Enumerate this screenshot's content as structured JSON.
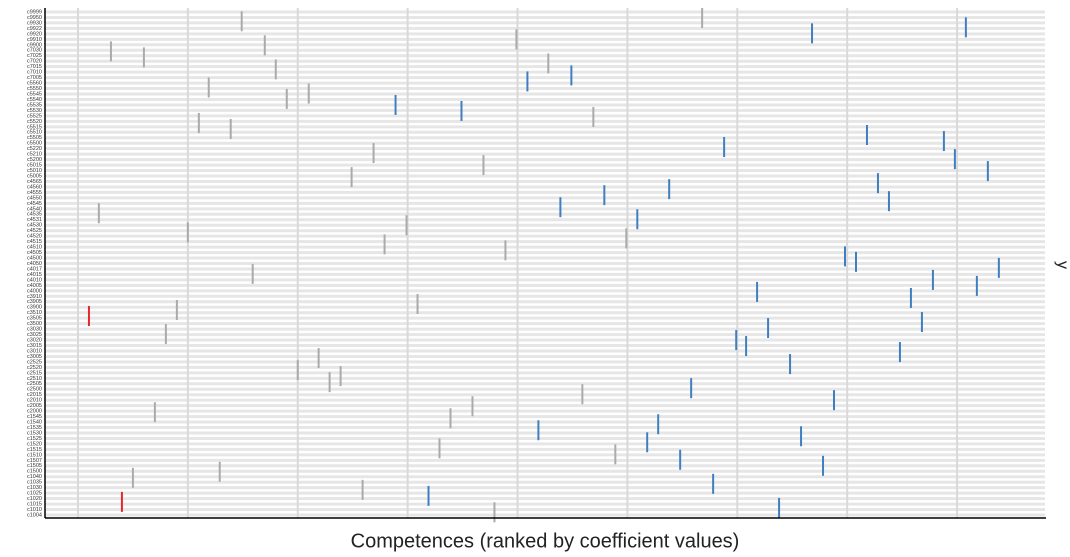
{
  "chart_data": {
    "type": "scatter",
    "xlabel": "Competences (ranked by coefficient values)",
    "ylabel": "y",
    "categories": [
      "c9999",
      "c9950",
      "c9930",
      "c9922",
      "c9920",
      "c9910",
      "c9900",
      "c7030",
      "c7025",
      "c7020",
      "c7015",
      "c7010",
      "c7005",
      "c5560",
      "c5550",
      "c5545",
      "c5540",
      "c5535",
      "c5530",
      "c5525",
      "c5520",
      "c5515",
      "c5510",
      "c5505",
      "c5500",
      "c5220",
      "c5210",
      "c5200",
      "c5015",
      "c5010",
      "c5005",
      "c4565",
      "c4560",
      "c4555",
      "c4550",
      "c4545",
      "c4540",
      "c4535",
      "c4531",
      "c4530",
      "c4525",
      "c4520",
      "c4515",
      "c4510",
      "c4505",
      "c4500",
      "c4050",
      "c4017",
      "c4015",
      "c4010",
      "c4005",
      "c4000",
      "c3910",
      "c3905",
      "c3900",
      "c3510",
      "c3505",
      "c3500",
      "c3030",
      "c3025",
      "c3020",
      "c3015",
      "c3010",
      "c3005",
      "c2525",
      "c2520",
      "c2515",
      "c2510",
      "c2505",
      "c2500",
      "c2015",
      "c2010",
      "c2005",
      "c2000",
      "c1545",
      "c1540",
      "c1535",
      "c1530",
      "c1525",
      "c1520",
      "c1515",
      "c1510",
      "c1507",
      "c1505",
      "c1500",
      "c1040",
      "c1035",
      "c1030",
      "c1025",
      "c1020",
      "c1015",
      "c1010",
      "c1004"
    ],
    "xlim": [
      -3,
      88
    ],
    "xticks": [
      0,
      10,
      20,
      30,
      40,
      50,
      60,
      70,
      80
    ],
    "ylim": [
      0,
      92
    ],
    "grid": true,
    "series": [
      {
        "color": "#aaaaaa",
        "x": [
          14.9,
          56.8,
          39.9,
          17.0,
          3.0,
          6.0,
          42.8,
          18.0,
          11.9,
          19.0,
          21.0,
          46.9,
          11.0,
          13.9,
          26.9,
          36.9,
          24.9,
          1.9,
          29.9,
          10.0,
          27.9,
          38.9,
          49.9,
          15.9,
          30.9,
          9.0,
          8.0,
          21.9,
          20.0,
          23.9,
          22.9,
          45.9,
          7.0,
          35.9,
          33.9,
          32.9,
          48.9,
          12.9,
          5.0,
          25.9,
          37.9
        ],
        "values": [
          90.3,
          90.9,
          87.0,
          85.9,
          84.8,
          83.7,
          82.6,
          81.5,
          78.2,
          76.1,
          77.1,
          72.8,
          71.7,
          70.6,
          66.2,
          64.0,
          61.8,
          55.2,
          53.0,
          51.7,
          49.5,
          48.4,
          50.6,
          44.1,
          38.6,
          37.5,
          33.1,
          28.7,
          26.5,
          25.4,
          24.3,
          22.1,
          18.8,
          19.9,
          17.7,
          12.2,
          11.1,
          7.9,
          6.8,
          4.6,
          0.5
        ]
      },
      {
        "color": "#3f7fc1",
        "x": [
          66.8,
          80.8,
          40.9,
          44.9,
          28.9,
          34.9,
          71.8,
          78.8,
          58.8,
          79.8,
          82.8,
          72.8,
          73.8,
          53.8,
          47.9,
          43.9,
          50.9,
          69.8,
          70.8,
          83.8,
          77.8,
          81.8,
          61.8,
          75.8,
          76.8,
          62.8,
          59.9,
          60.8,
          74.8,
          64.8,
          55.8,
          68.8,
          52.8,
          41.9,
          51.8,
          65.8,
          54.8,
          67.8,
          57.8,
          31.9,
          63.8
        ],
        "values": [
          88.1,
          89.2,
          79.3,
          80.4,
          75.0,
          73.9,
          69.5,
          68.4,
          67.3,
          65.1,
          62.9,
          60.7,
          57.4,
          59.6,
          58.5,
          56.3,
          54.1,
          47.3,
          46.3,
          45.2,
          43.0,
          41.9,
          40.8,
          39.7,
          35.3,
          34.2,
          32.0,
          30.9,
          29.8,
          27.6,
          23.2,
          21.0,
          16.6,
          15.5,
          13.3,
          14.4,
          10.1,
          9.0,
          5.7,
          3.5,
          1.3
        ]
      },
      {
        "color": "#e8262a",
        "x": [
          1.0,
          4.0
        ],
        "values": [
          36.4,
          2.4
        ]
      }
    ]
  }
}
